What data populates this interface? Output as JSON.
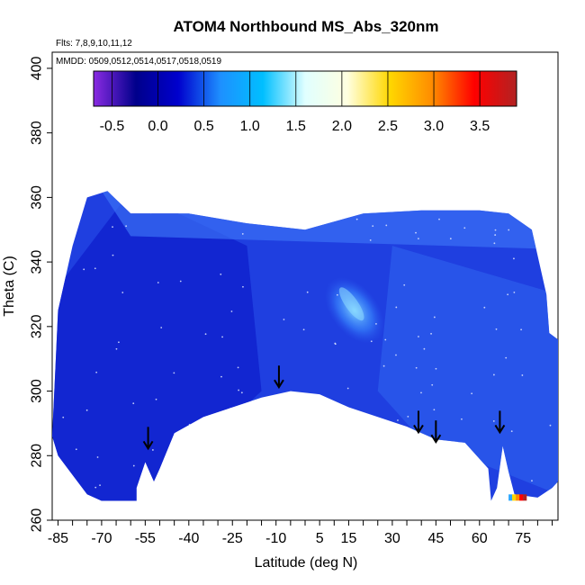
{
  "chart_data": {
    "type": "heatmap",
    "title": "ATOM4 Northbound MS_Abs_320nm",
    "flights_note": "Flts: 7,8,9,10,11,12",
    "dates_note": "MMDD: 0509,0512,0514,0517,0518,0519",
    "xlabel": "Latitude (deg N)",
    "ylabel": "Theta (C)",
    "xlim": [
      -87,
      87
    ],
    "ylim": [
      260,
      405
    ],
    "x_ticks": [
      -85,
      -70,
      -55,
      -40,
      -25,
      -10,
      5,
      15,
      30,
      45,
      60,
      75
    ],
    "x_minor_step": 5,
    "y_ticks": [
      260,
      280,
      300,
      320,
      340,
      360,
      380,
      400
    ],
    "colorbar": {
      "range": [
        -0.7,
        3.9
      ],
      "ticks": [
        -0.5,
        0.0,
        0.5,
        1.0,
        1.5,
        2.0,
        2.5,
        3.0,
        3.5
      ],
      "tick_labels": [
        "-0.5",
        "0.0",
        "0.5",
        "1.0",
        "1.5",
        "2.0",
        "2.5",
        "3.0",
        "3.5"
      ],
      "colors": [
        "#8a2be2",
        "#00008b",
        "#0000cd",
        "#1e90ff",
        "#00bfff",
        "#e0ffff",
        "#ffffe0",
        "#ffd700",
        "#ff8c00",
        "#ff0000",
        "#b22222"
      ]
    },
    "field": {
      "typical_value": 0.3,
      "max_region_value": 1.3,
      "max_region_location": {
        "latitude": 17,
        "theta": 325
      },
      "high_spot_value": 3.6,
      "high_spot_location": {
        "latitude": 74,
        "theta": 267
      }
    },
    "boundary_top": [
      [
        -85,
        325
      ],
      [
        -80,
        345
      ],
      [
        -75,
        360
      ],
      [
        -68,
        362
      ],
      [
        -60,
        355
      ],
      [
        -40,
        355
      ],
      [
        -20,
        352
      ],
      [
        0,
        350
      ],
      [
        20,
        355
      ],
      [
        40,
        356
      ],
      [
        60,
        356
      ],
      [
        70,
        355
      ],
      [
        78,
        350
      ],
      [
        83,
        330
      ],
      [
        84,
        318
      ],
      [
        87,
        316
      ]
    ],
    "boundary_bottom": [
      [
        -87,
        286
      ],
      [
        -85,
        280
      ],
      [
        -80,
        274
      ],
      [
        -75,
        268
      ],
      [
        -70,
        266
      ],
      [
        -58,
        266
      ],
      [
        -58,
        270
      ],
      [
        -55,
        278
      ],
      [
        -52,
        272
      ],
      [
        -50,
        276
      ],
      [
        -45,
        287
      ],
      [
        -35,
        292
      ],
      [
        -25,
        295
      ],
      [
        -15,
        298
      ],
      [
        -5,
        300
      ],
      [
        5,
        299
      ],
      [
        15,
        295
      ],
      [
        25,
        292
      ],
      [
        35,
        289
      ],
      [
        45,
        285
      ],
      [
        55,
        284
      ],
      [
        63,
        276
      ],
      [
        64,
        266
      ],
      [
        66,
        270
      ],
      [
        68,
        283
      ],
      [
        70,
        275
      ],
      [
        72,
        268
      ],
      [
        80,
        267
      ],
      [
        85,
        270
      ],
      [
        87,
        272
      ]
    ],
    "arrows_latitude": [
      -54,
      -9,
      39,
      45,
      67
    ],
    "arrows_theta": [
      285,
      304,
      290,
      287,
      290
    ]
  }
}
